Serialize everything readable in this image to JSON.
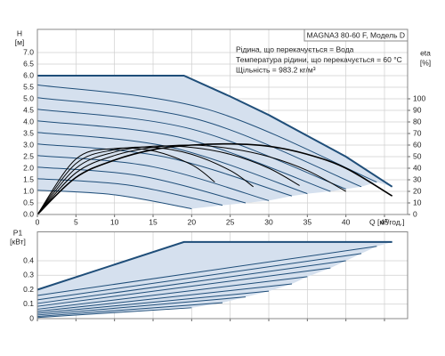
{
  "chart_data": [
    {
      "type": "line",
      "title": "MAGNA3 80-60 F, Модель D",
      "annotations": [
        "Рідина, що перекачується = Вода",
        "Температура рідини, що перекачується = 60 °C",
        "Щільність = 983.2 кг/м³"
      ],
      "ylabel": "H",
      "yunit": "[м]",
      "y2label": "eta",
      "y2unit": "[%]",
      "xlabel": "Q [м³/год.]",
      "xlim": [
        0,
        48
      ],
      "xticks": [
        0,
        5,
        10,
        15,
        20,
        25,
        30,
        35,
        40,
        45
      ],
      "ylim": [
        0,
        8
      ],
      "yticks": [
        {
          "value": 0,
          "label": "0.0"
        },
        0.5,
        {
          "value": 1,
          "label": "1.0"
        },
        1.5,
        {
          "value": 2,
          "label": "2.0"
        },
        2.5,
        {
          "value": 3,
          "label": "3.0"
        },
        3.5,
        {
          "value": 4,
          "label": "4.0"
        },
        4.5,
        {
          "value": 5,
          "label": "5.0"
        },
        5.5,
        {
          "value": 6,
          "label": "6.0"
        },
        6.5,
        {
          "value": 7,
          "label": "7.0"
        }
      ],
      "y2lim": [
        0,
        160
      ],
      "y2ticks": [
        0,
        10,
        20,
        30,
        40,
        50,
        60,
        70,
        80,
        90,
        100
      ],
      "grid": true,
      "area_color": "#d5e0ee",
      "series": [
        {
          "color": "#1f4e79",
          "width": 2,
          "smooth": false,
          "x": [
            0,
            19,
            25,
            30,
            35,
            40,
            46
          ],
          "values": [
            6,
            6,
            5.1,
            4.3,
            3.4,
            2.5,
            1.2
          ]
        },
        {
          "color": "#1f4e79",
          "width": 1,
          "smooth": true,
          "x": [
            0,
            22,
            44
          ],
          "values": [
            5.6,
            4.55,
            1.4
          ]
        },
        {
          "color": "#1f4e79",
          "width": 1,
          "smooth": true,
          "x": [
            0,
            21,
            42
          ],
          "values": [
            5.05,
            4.09,
            1.2
          ]
        },
        {
          "color": "#1f4e79",
          "width": 1,
          "smooth": true,
          "x": [
            0,
            20,
            40
          ],
          "values": [
            4.55,
            3.69,
            1.1
          ]
        },
        {
          "color": "#1f4e79",
          "width": 1,
          "smooth": true,
          "x": [
            0,
            19,
            38
          ],
          "values": [
            4.05,
            3.29,
            1.0
          ]
        },
        {
          "color": "#1f4e79",
          "width": 1,
          "smooth": true,
          "x": [
            0,
            17.5,
            35
          ],
          "values": [
            3.55,
            2.89,
            0.9
          ]
        },
        {
          "color": "#1f4e79",
          "width": 1,
          "smooth": true,
          "x": [
            0,
            16.5,
            33
          ],
          "values": [
            3.05,
            2.49,
            0.8
          ]
        },
        {
          "color": "#1f4e79",
          "width": 1,
          "smooth": true,
          "x": [
            0,
            15,
            30
          ],
          "values": [
            2.55,
            2.06,
            0.6
          ]
        },
        {
          "color": "#1f4e79",
          "width": 1,
          "smooth": true,
          "x": [
            0,
            13.5,
            27
          ],
          "values": [
            2.05,
            1.66,
            0.5
          ]
        },
        {
          "color": "#1f4e79",
          "width": 1,
          "smooth": true,
          "x": [
            0,
            12,
            24
          ],
          "values": [
            1.55,
            1.26,
            0.4
          ]
        },
        {
          "color": "#1f4e79",
          "width": 1,
          "smooth": true,
          "x": [
            0,
            10,
            20
          ],
          "values": [
            1.05,
            0.85,
            0.25
          ]
        },
        {
          "color": "#000000",
          "width": 1.6,
          "smooth": true,
          "axis": "y2",
          "x": [
            0,
            5,
            10,
            15,
            20,
            25,
            30,
            35,
            40,
            46
          ],
          "values": [
            0,
            32,
            47,
            56,
            60,
            61,
            59,
            52,
            40,
            16
          ]
        },
        {
          "color": "#000000",
          "width": 1,
          "smooth": true,
          "axis": "y2",
          "x": [
            0,
            5,
            10,
            15,
            20,
            25,
            30,
            35,
            40
          ],
          "values": [
            0,
            36,
            51,
            58,
            60,
            57,
            50,
            38,
            20
          ]
        },
        {
          "color": "#000000",
          "width": 1,
          "smooth": true,
          "axis": "y2",
          "x": [
            0,
            5,
            10,
            15,
            20,
            25,
            30,
            34
          ],
          "values": [
            0,
            40,
            54,
            59,
            58,
            52,
            40,
            25
          ]
        },
        {
          "color": "#000000",
          "width": 1,
          "smooth": true,
          "axis": "y2",
          "x": [
            0,
            5,
            10,
            15,
            20,
            25,
            28
          ],
          "values": [
            0,
            44,
            56,
            58,
            52,
            38,
            24
          ]
        },
        {
          "color": "#000000",
          "width": 1,
          "smooth": true,
          "axis": "y2",
          "x": [
            0,
            5,
            10,
            15,
            20,
            23
          ],
          "values": [
            0,
            48,
            57,
            55,
            43,
            28
          ]
        }
      ]
    },
    {
      "type": "line",
      "ylabel": "P1",
      "yunit": "[кВт]",
      "xlim": [
        0,
        48
      ],
      "ylim": [
        0,
        0.6
      ],
      "yticks": [
        0,
        0.1,
        0.2,
        0.3,
        0.4
      ],
      "grid": true,
      "area_color": "#d5e0ee",
      "series": [
        {
          "color": "#1f4e79",
          "width": 2,
          "smooth": false,
          "x": [
            0,
            19,
            46
          ],
          "values": [
            0.2,
            0.53,
            0.53
          ]
        },
        {
          "color": "#1f4e79",
          "width": 1,
          "smooth": false,
          "x": [
            0,
            44
          ],
          "values": [
            0.16,
            0.5
          ]
        },
        {
          "color": "#1f4e79",
          "width": 1,
          "smooth": false,
          "x": [
            0,
            42
          ],
          "values": [
            0.13,
            0.45
          ]
        },
        {
          "color": "#1f4e79",
          "width": 1,
          "smooth": false,
          "x": [
            0,
            40
          ],
          "values": [
            0.105,
            0.4
          ]
        },
        {
          "color": "#1f4e79",
          "width": 1,
          "smooth": false,
          "x": [
            0,
            38
          ],
          "values": [
            0.085,
            0.35
          ]
        },
        {
          "color": "#1f4e79",
          "width": 1,
          "smooth": false,
          "x": [
            0,
            35
          ],
          "values": [
            0.065,
            0.29
          ]
        },
        {
          "color": "#1f4e79",
          "width": 1,
          "smooth": false,
          "x": [
            0,
            33
          ],
          "values": [
            0.05,
            0.24
          ]
        },
        {
          "color": "#1f4e79",
          "width": 1,
          "smooth": false,
          "x": [
            0,
            30
          ],
          "values": [
            0.037,
            0.19
          ]
        },
        {
          "color": "#1f4e79",
          "width": 1,
          "smooth": false,
          "x": [
            0,
            27
          ],
          "values": [
            0.025,
            0.15
          ]
        },
        {
          "color": "#1f4e79",
          "width": 1,
          "smooth": false,
          "x": [
            0,
            24
          ],
          "values": [
            0.015,
            0.11
          ]
        },
        {
          "color": "#1f4e79",
          "width": 1,
          "smooth": false,
          "x": [
            0,
            20
          ],
          "values": [
            0.008,
            0.075
          ]
        }
      ]
    }
  ]
}
